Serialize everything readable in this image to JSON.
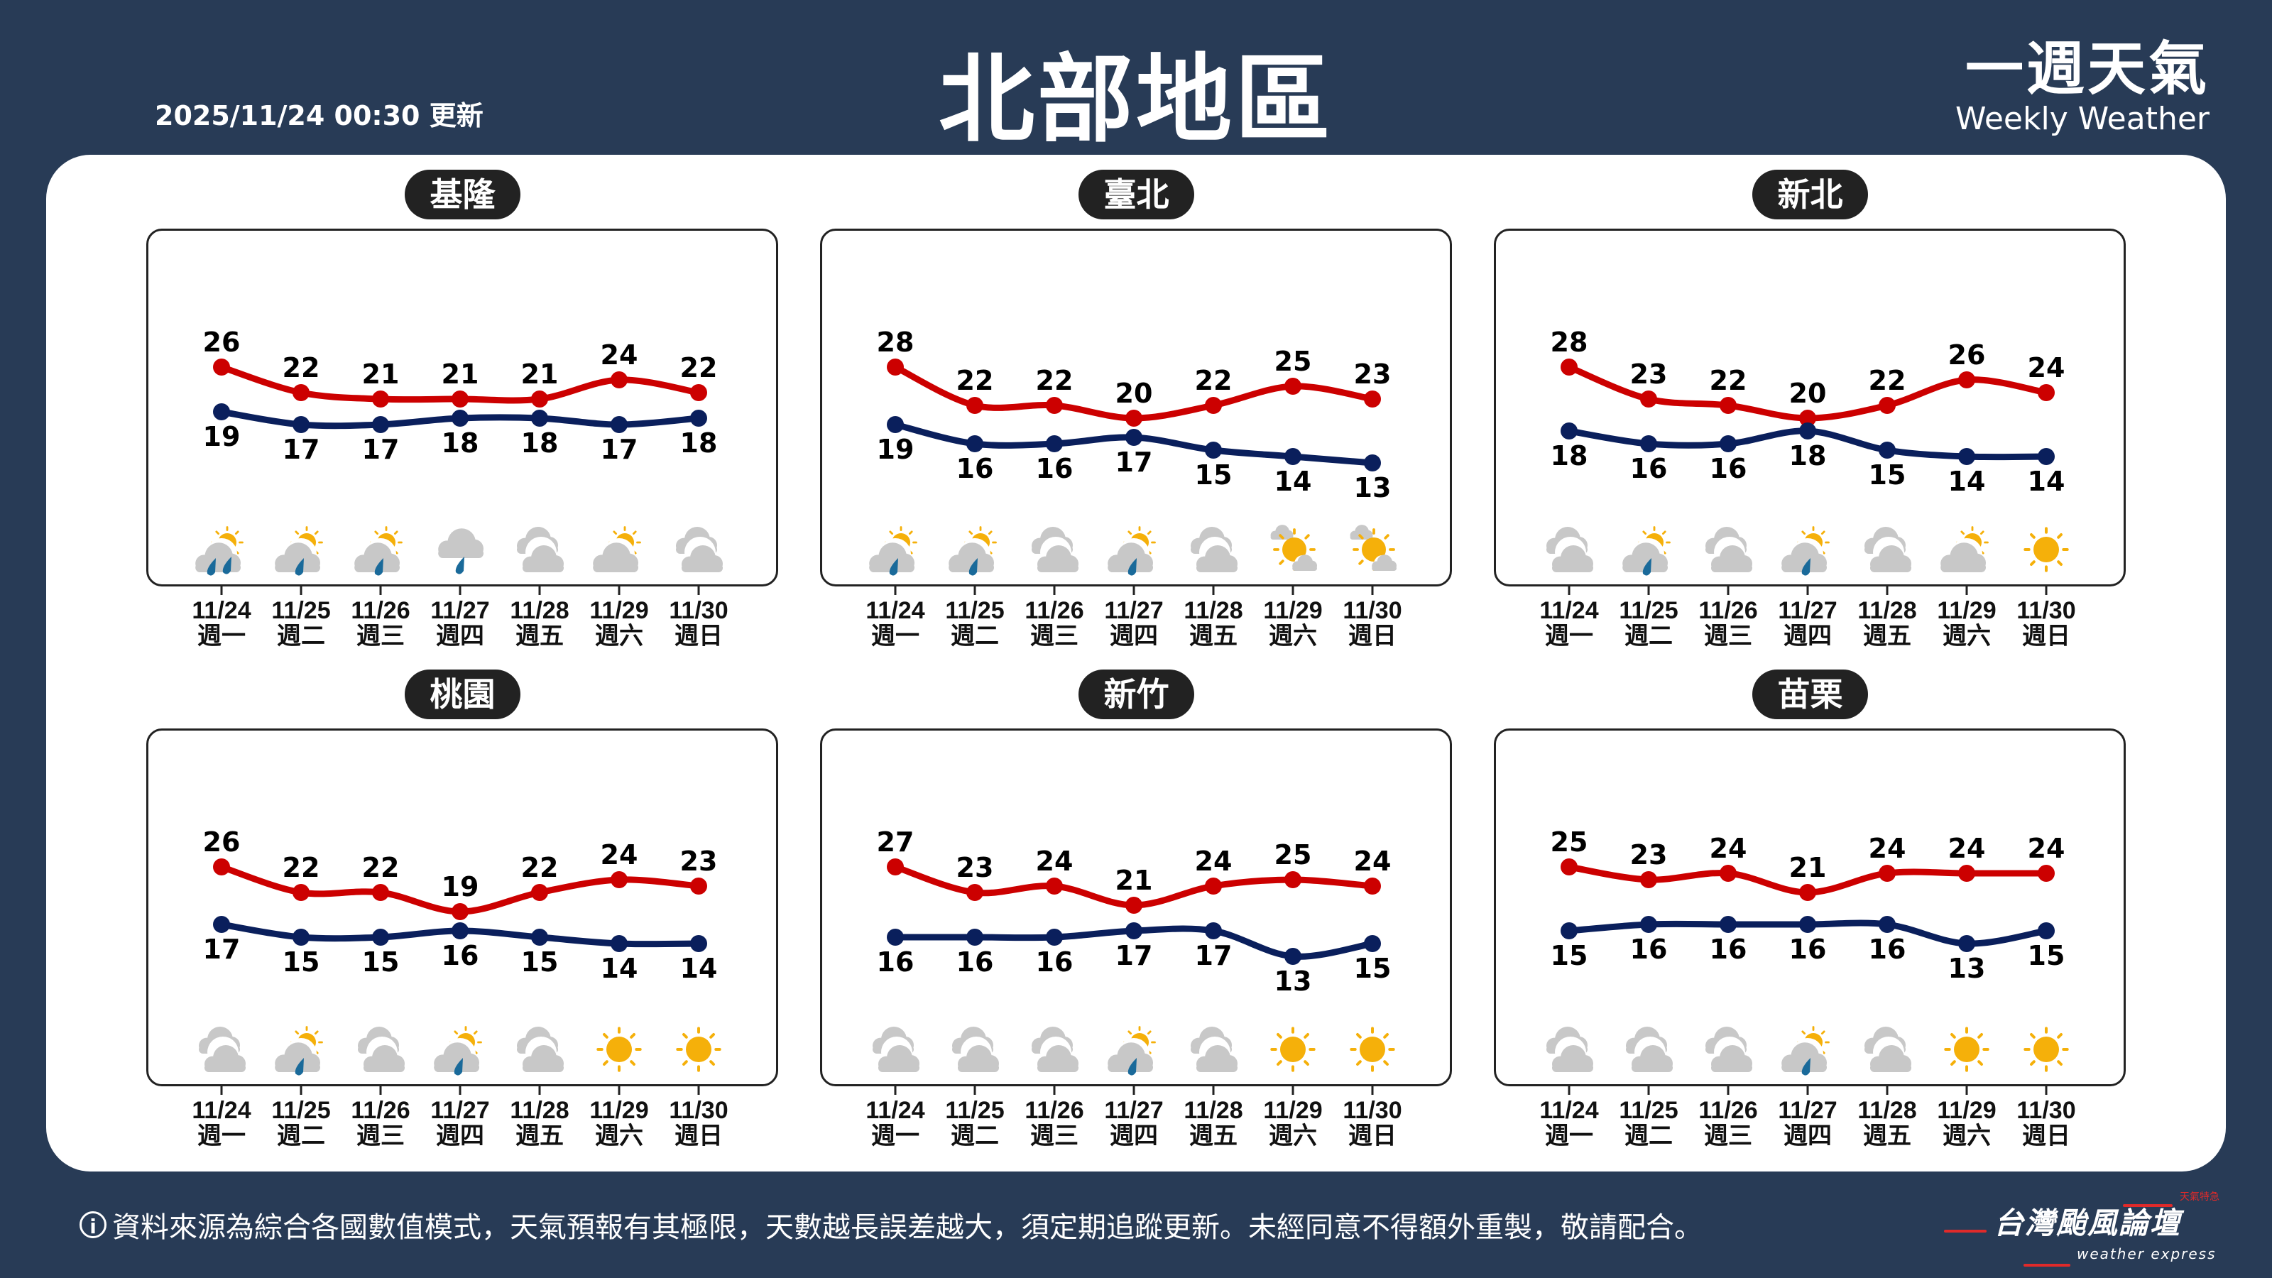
{
  "header": {
    "updated": "2025/11/24 00:30 更新",
    "title": "北部地區",
    "brand_zh": "一週天氣",
    "brand_en": "Weekly Weather"
  },
  "colors": {
    "background": "#283b56",
    "high": "#cc0000",
    "low": "#0a1f5c",
    "sun": "#f5b00a",
    "cloud": "#c8c8c8",
    "rain": "#1a6a9a"
  },
  "dates": [
    "11/24",
    "11/25",
    "11/26",
    "11/27",
    "11/28",
    "11/29",
    "11/30"
  ],
  "weekdays": [
    "週一",
    "週二",
    "週三",
    "週四",
    "週五",
    "週六",
    "週日"
  ],
  "cities": [
    {
      "name": "基隆",
      "high": [
        26,
        22,
        21,
        21,
        21,
        24,
        22
      ],
      "low": [
        19,
        17,
        17,
        18,
        18,
        17,
        18
      ],
      "icons": [
        "partly-cloudy-heavy-rain",
        "partly-cloudy-rain",
        "partly-cloudy-rain",
        "cloudy-rain",
        "cloudy",
        "partly-cloudy",
        "cloudy"
      ]
    },
    {
      "name": "臺北",
      "high": [
        28,
        22,
        22,
        20,
        22,
        25,
        23
      ],
      "low": [
        19,
        16,
        16,
        17,
        15,
        14,
        13
      ],
      "icons": [
        "partly-cloudy-rain",
        "partly-cloudy-rain",
        "cloudy",
        "partly-cloudy-rain",
        "cloudy",
        "mostly-sunny",
        "mostly-sunny"
      ]
    },
    {
      "name": "新北",
      "high": [
        28,
        23,
        22,
        20,
        22,
        26,
        24
      ],
      "low": [
        18,
        16,
        16,
        18,
        15,
        14,
        14
      ],
      "icons": [
        "cloudy",
        "partly-cloudy-rain",
        "cloudy",
        "partly-cloudy-rain",
        "cloudy",
        "partly-cloudy",
        "sunny"
      ]
    },
    {
      "name": "桃園",
      "high": [
        26,
        22,
        22,
        19,
        22,
        24,
        23
      ],
      "low": [
        17,
        15,
        15,
        16,
        15,
        14,
        14
      ],
      "icons": [
        "cloudy",
        "partly-cloudy-rain",
        "cloudy",
        "partly-cloudy-rain",
        "cloudy",
        "sunny",
        "sunny"
      ]
    },
    {
      "name": "新竹",
      "high": [
        27,
        23,
        24,
        21,
        24,
        25,
        24
      ],
      "low": [
        16,
        16,
        16,
        17,
        17,
        13,
        15
      ],
      "icons": [
        "cloudy",
        "cloudy",
        "cloudy",
        "partly-cloudy-rain",
        "cloudy",
        "sunny",
        "sunny"
      ]
    },
    {
      "name": "苗栗",
      "high": [
        25,
        23,
        24,
        21,
        24,
        24,
        24
      ],
      "low": [
        15,
        16,
        16,
        16,
        16,
        13,
        15
      ],
      "icons": [
        "cloudy",
        "cloudy",
        "cloudy",
        "partly-cloudy-rain",
        "cloudy",
        "sunny",
        "sunny"
      ]
    }
  ],
  "footer": {
    "info_icon": "i",
    "disclaimer": "資料來源為綜合各國數值模式，天氣預報有其極限，天數越長誤差越大，須定期追蹤更新。未經同意不得額外重製，敬請配合。"
  },
  "logo": {
    "zh": "台灣颱風論壇",
    "en": "weather express",
    "tag": "天氣特急"
  }
}
